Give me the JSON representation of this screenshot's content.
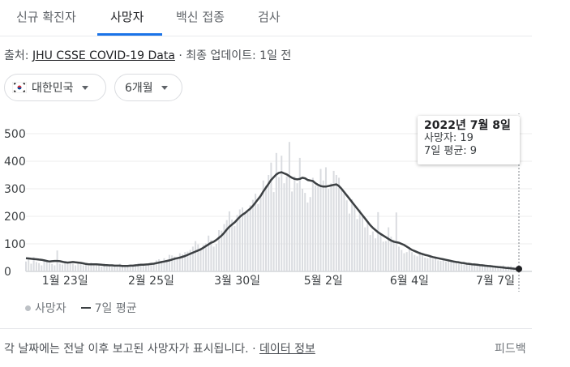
{
  "tabs": [
    {
      "label": "신규 확진자",
      "active": false
    },
    {
      "label": "사망자",
      "active": true
    },
    {
      "label": "백신 접종",
      "active": false
    },
    {
      "label": "검사",
      "active": false
    }
  ],
  "source": {
    "prefix": "출처:",
    "link": "JHU CSSE COVID-19 Data",
    "updated": "· 최종 업데이트: 1일 전"
  },
  "filters": {
    "country": "대한민국",
    "period": "6개월"
  },
  "colors": {
    "accent": "#1a73e8",
    "bar": "#dadce0",
    "line": "#3c4043"
  },
  "chart_data": {
    "type": "bar",
    "ylim": [
      0,
      500
    ],
    "yticks": [
      0,
      100,
      200,
      300,
      400,
      500
    ],
    "xtick_labels": [
      "1월 23일",
      "2월 25일",
      "3월 30일",
      "5월 2일",
      "6월 4일",
      "7월 7일"
    ],
    "start_date": "2022-01-08",
    "end_date": "2022-07-08",
    "series": [
      {
        "name": "사망자",
        "values": [
          36,
          48,
          28,
          52,
          34,
          30,
          22,
          44,
          36,
          30,
          27,
          22,
          76,
          28,
          25,
          38,
          32,
          30,
          28,
          22,
          34,
          30,
          22,
          25,
          20,
          32,
          24,
          26,
          22,
          18,
          30,
          21,
          25,
          18,
          20,
          16,
          28,
          22,
          18,
          20,
          24,
          18,
          26,
          30,
          24,
          22,
          20,
          26,
          28,
          30,
          40,
          44,
          36,
          48,
          40,
          60,
          58,
          54,
          52,
          66,
          62,
          70,
          72,
          78,
          90,
          110,
          98,
          86,
          96,
          102,
          130,
          114,
          90,
          100,
          150,
          148,
          172,
          186,
          218,
          188,
          165,
          205,
          225,
          232,
          210,
          215,
          240,
          260,
          282,
          245,
          270,
          330,
          312,
          350,
          395,
          288,
          430,
          342,
          420,
          320,
          345,
          470,
          290,
          345,
          320,
          412,
          300,
          285,
          250,
          270,
          340,
          312,
          308,
          372,
          330,
          378,
          300,
          320,
          365,
          350,
          340,
          300,
          288,
          258,
          210,
          262,
          245,
          190,
          225,
          200,
          160,
          175,
          132,
          145,
          120,
          215,
          140,
          108,
          110,
          160,
          126,
          115,
          214,
          90,
          78,
          66,
          70,
          85,
          70,
          60,
          55,
          72,
          64,
          50,
          48,
          60,
          45,
          52,
          40,
          38,
          44,
          36,
          42,
          35,
          40,
          32,
          30,
          28,
          34,
          30,
          26,
          22,
          30,
          25,
          20,
          26,
          22,
          18,
          24,
          20,
          16,
          20,
          18,
          22,
          15,
          18,
          20,
          16,
          14,
          19
        ]
      },
      {
        "name": "7일 평균",
        "values": [
          48,
          47,
          46,
          45,
          44,
          43,
          42,
          40,
          38,
          36,
          37,
          38,
          38,
          37,
          35,
          33,
          32,
          33,
          34,
          33,
          32,
          31,
          29,
          27,
          26,
          26,
          26,
          26,
          25,
          24,
          23,
          23,
          22,
          22,
          21,
          21,
          21,
          20,
          20,
          20,
          21,
          21,
          22,
          23,
          24,
          24,
          25,
          26,
          27,
          28,
          30,
          32,
          34,
          36,
          38,
          40,
          43,
          46,
          48,
          50,
          53,
          56,
          60,
          64,
          68,
          72,
          76,
          80,
          86,
          92,
          98,
          104,
          108,
          114,
          122,
          130,
          140,
          152,
          162,
          170,
          178,
          188,
          198,
          206,
          212,
          220,
          228,
          238,
          250,
          262,
          274,
          290,
          304,
          318,
          332,
          342,
          352,
          358,
          360,
          356,
          352,
          346,
          340,
          336,
          334,
          336,
          340,
          338,
          332,
          330,
          328,
          320,
          314,
          310,
          308,
          308,
          310,
          312,
          314,
          316,
          310,
          300,
          288,
          276,
          264,
          252,
          240,
          228,
          216,
          204,
          192,
          180,
          168,
          158,
          150,
          142,
          136,
          130,
          124,
          118,
          112,
          108,
          106,
          104,
          100,
          96,
          90,
          84,
          78,
          74,
          70,
          66,
          63,
          60,
          58,
          55,
          52,
          50,
          48,
          46,
          44,
          42,
          40,
          38,
          36,
          34,
          33,
          31,
          30,
          28,
          27,
          26,
          25,
          24,
          23,
          22,
          21,
          20,
          19,
          18,
          17,
          16,
          15,
          14,
          13,
          12,
          11,
          10,
          9,
          9
        ]
      }
    ],
    "tooltip": {
      "date": "2022년 7월 8일",
      "deaths": "사망자: 19",
      "avg": "7일 평균: 9"
    }
  },
  "legend": {
    "bar_label": "사망자",
    "line_label": "7일 평균"
  },
  "footnote": {
    "text": "각 날짜에는 전날 이후 보고된 사망자가 표시됩니다. ·",
    "link": "데이터 정보"
  },
  "feedback": "피드백"
}
